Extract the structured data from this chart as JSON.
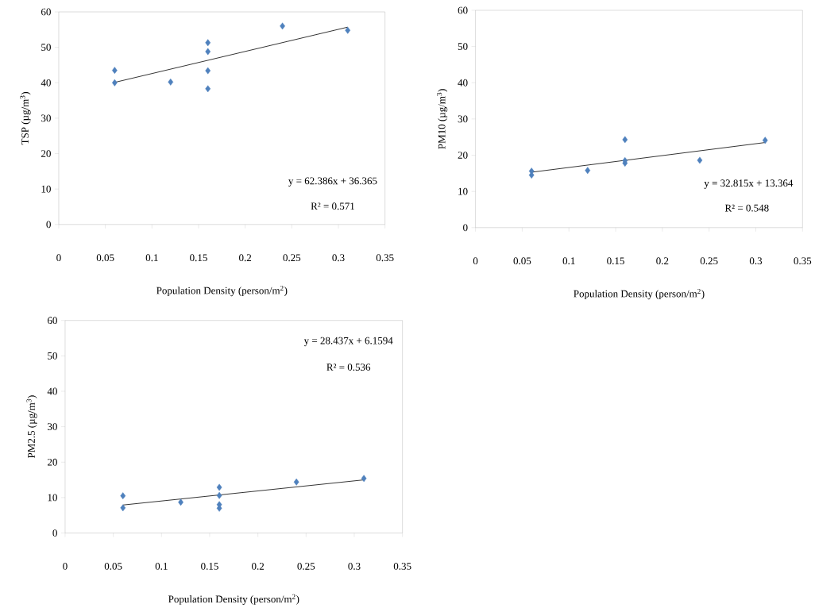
{
  "chart_data": [
    {
      "type": "scatter",
      "xlabel": "Population Density (person/m$^{2}$)",
      "ylabel": "TSP (µg/m$^{3}$)",
      "xlim": [
        0,
        0.35
      ],
      "ylim": [
        0,
        60
      ],
      "xticks": [
        0,
        0.05,
        0.1,
        0.15,
        0.2,
        0.25,
        0.3,
        0.35
      ],
      "yticks": [
        0,
        10,
        20,
        30,
        40,
        50,
        60
      ],
      "grid": false,
      "series": [
        {
          "color": "#4f81bd",
          "marker": "diamond",
          "x": [
            0.06,
            0.06,
            0.12,
            0.16,
            0.16,
            0.16,
            0.16,
            0.24,
            0.31
          ],
          "values": [
            43.5,
            40.0,
            40.2,
            51.3,
            48.8,
            43.4,
            38.3,
            56.0,
            54.8
          ]
        },
        {
          "type": "line",
          "color": "#000000",
          "marker": "none",
          "x": [
            0.06,
            0.31
          ],
          "values": [
            40.1,
            55.7
          ]
        }
      ],
      "annotations": [
        "y = 62.386x + 36.365",
        "R² = 0.571"
      ]
    },
    {
      "type": "scatter",
      "xlabel": "Population Density (person/m$^{2}$)",
      "ylabel": "PM10 (µg/m$^{3}$)",
      "xlim": [
        0,
        0.35
      ],
      "ylim": [
        0,
        60
      ],
      "xticks": [
        0,
        0.05,
        0.1,
        0.15,
        0.2,
        0.25,
        0.3,
        0.35
      ],
      "yticks": [
        0,
        10,
        20,
        30,
        40,
        50,
        60
      ],
      "grid": false,
      "series": [
        {
          "color": "#4f81bd",
          "marker": "diamond",
          "x": [
            0.06,
            0.06,
            0.12,
            0.16,
            0.16,
            0.16,
            0.24,
            0.31
          ],
          "values": [
            15.6,
            14.5,
            15.8,
            24.3,
            18.5,
            17.8,
            18.6,
            24.1
          ]
        },
        {
          "type": "line",
          "color": "#000000",
          "marker": "none",
          "x": [
            0.06,
            0.31
          ],
          "values": [
            15.3,
            23.5
          ]
        }
      ],
      "annotations": [
        "y = 32.815x + 13.364",
        "R² = 0.548"
      ]
    },
    {
      "type": "scatter",
      "xlabel": "Population Density (person/m$^{2}$)",
      "ylabel": "PM2.5 (µg/m$^{3}$)",
      "xlim": [
        0,
        0.35
      ],
      "ylim": [
        0,
        60
      ],
      "xticks": [
        0,
        0.05,
        0.1,
        0.15,
        0.2,
        0.25,
        0.3,
        0.35
      ],
      "yticks": [
        0,
        10,
        20,
        30,
        40,
        50,
        60
      ],
      "grid": false,
      "series": [
        {
          "color": "#4f81bd",
          "marker": "diamond",
          "x": [
            0.06,
            0.06,
            0.12,
            0.16,
            0.16,
            0.16,
            0.16,
            0.24,
            0.31
          ],
          "values": [
            10.5,
            7.1,
            8.7,
            12.9,
            10.6,
            8.0,
            7.0,
            14.4,
            15.4
          ]
        },
        {
          "type": "line",
          "color": "#000000",
          "marker": "none",
          "x": [
            0.06,
            0.31
          ],
          "values": [
            7.9,
            15.0
          ]
        }
      ],
      "annotations": [
        "y = 28.437x + 6.1594",
        "R² = 0.536"
      ]
    }
  ]
}
